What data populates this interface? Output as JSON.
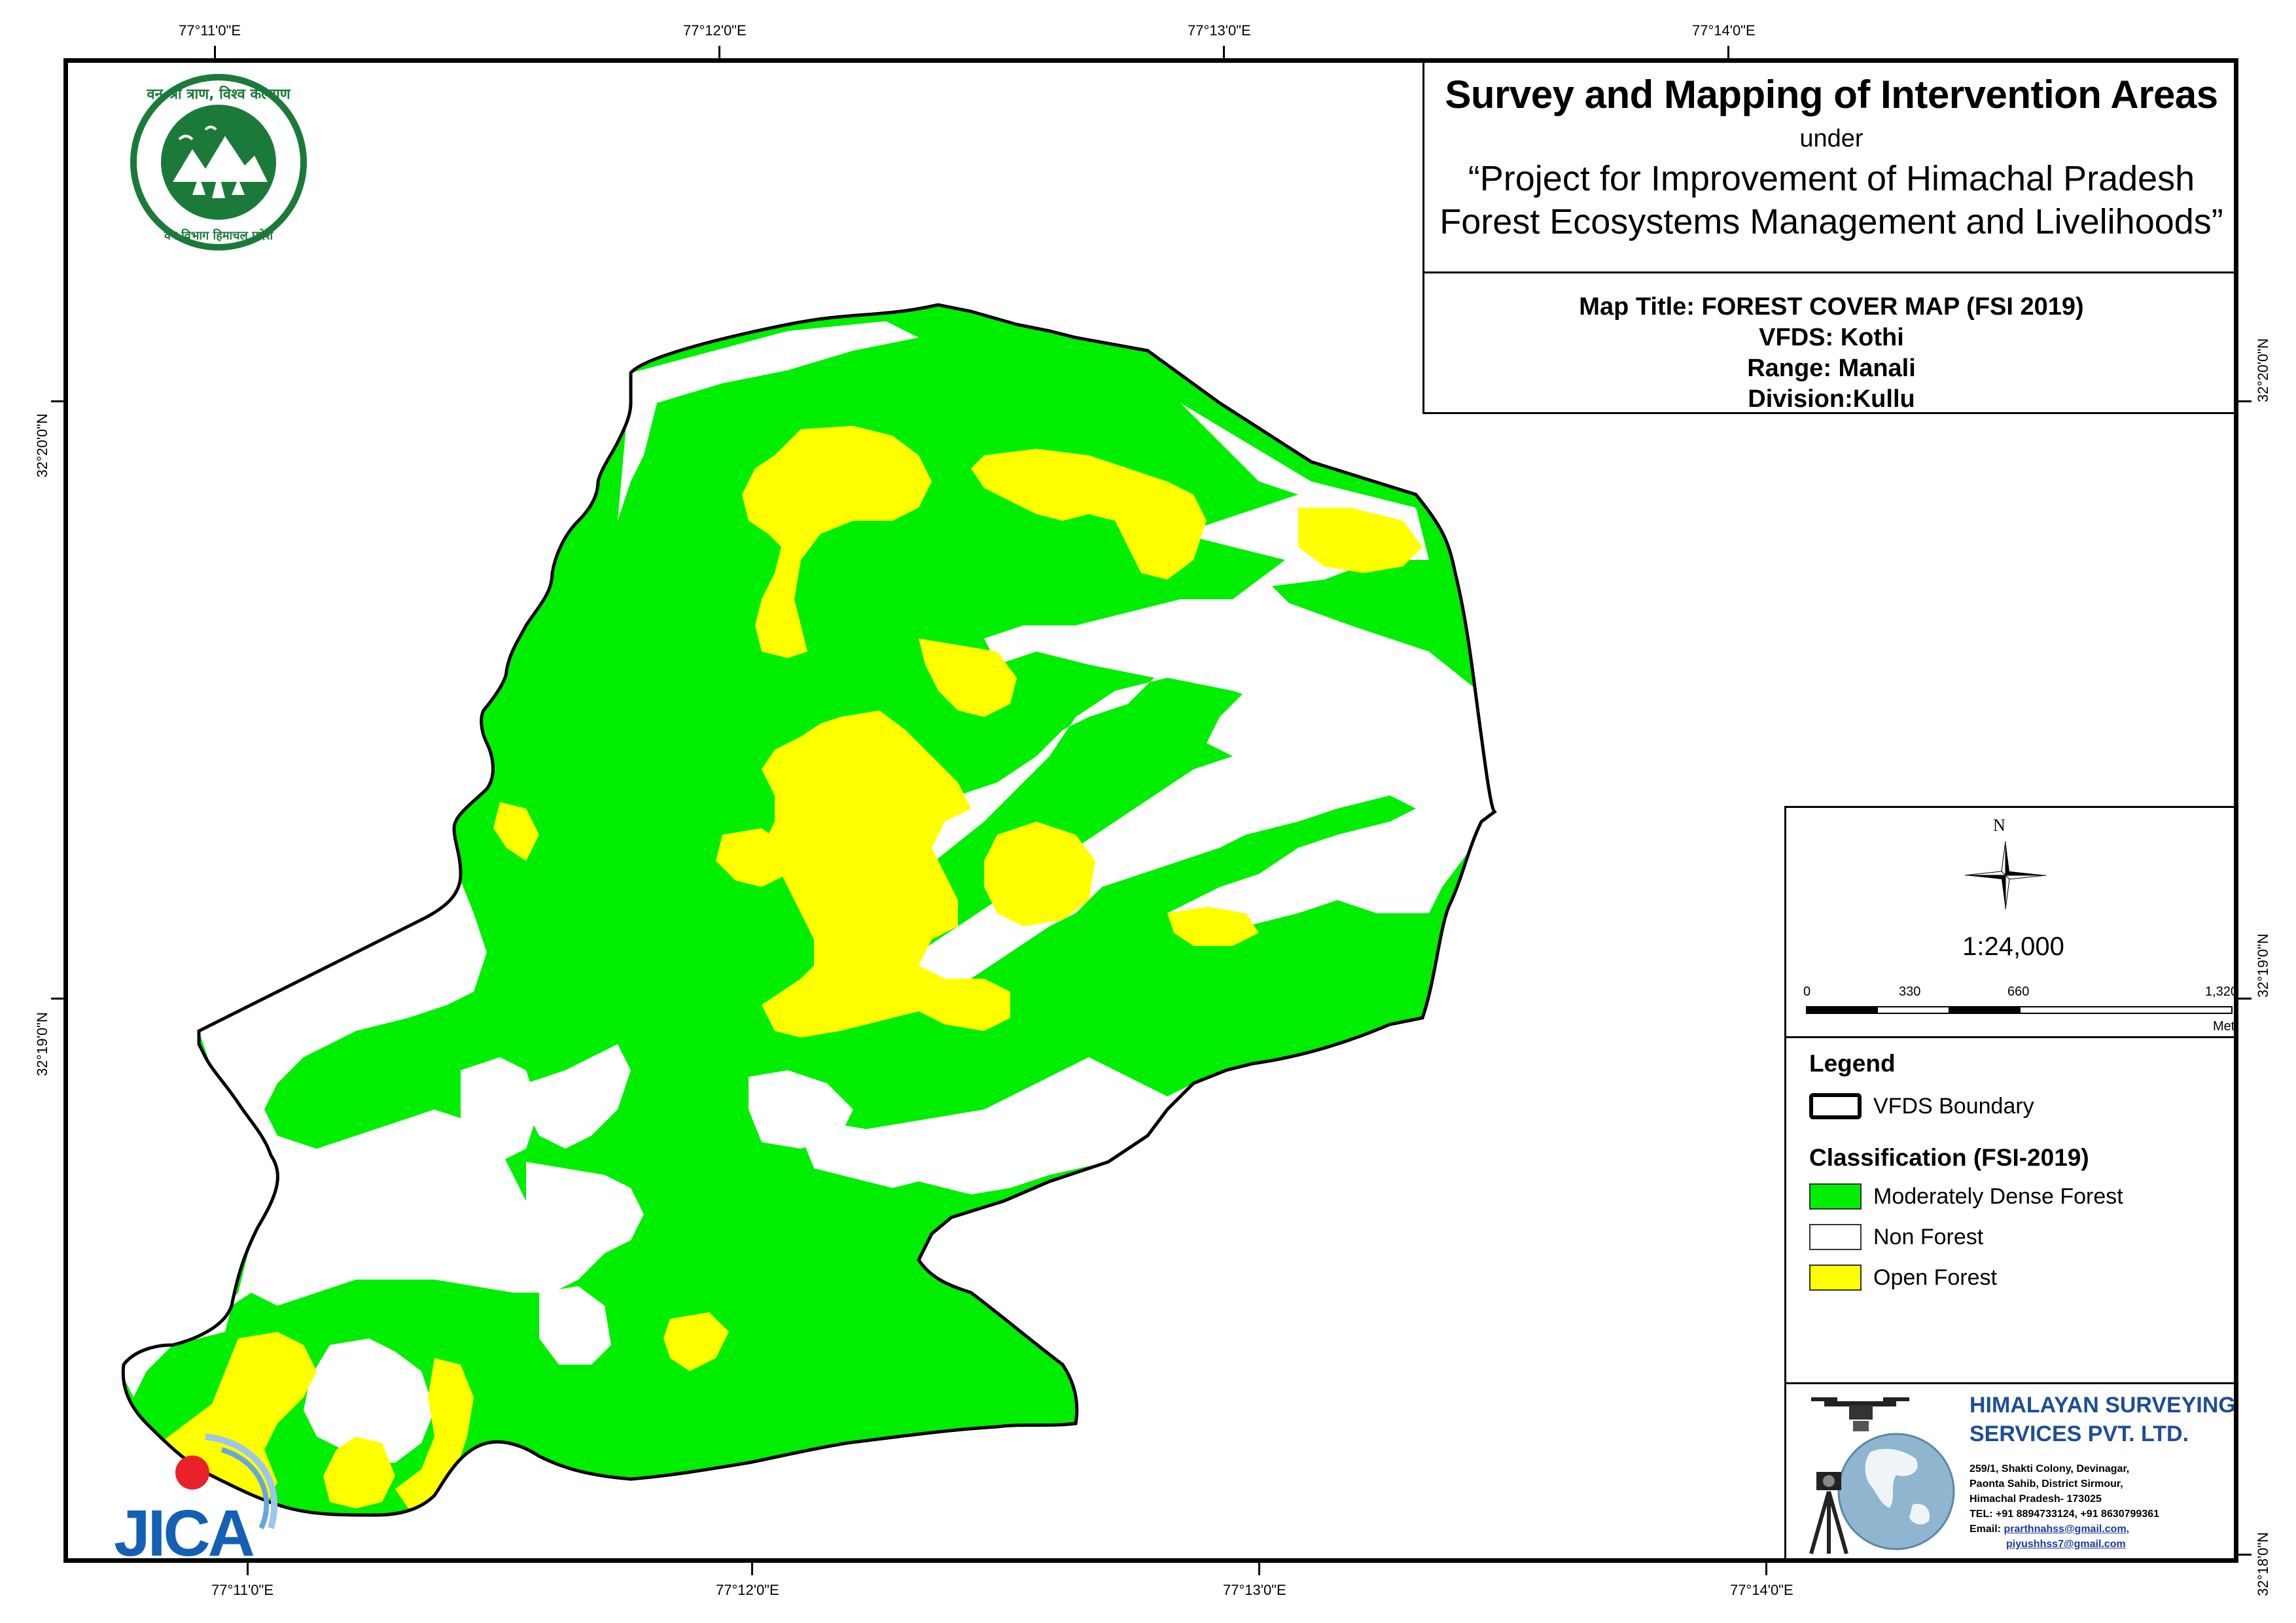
{
  "header": {
    "title": "Survey and Mapping of Intervention Areas",
    "under": "under",
    "project_line1": "“Project for Improvement of Himachal Pradesh",
    "project_line2": "Forest Ecosystems Management and Livelihoods”"
  },
  "map_info": {
    "map_title": "Map Title: FOREST COVER MAP (FSI 2019)",
    "vfds": "VFDS: Kothi",
    "range": "Range: Manali",
    "division": "Division:Kullu"
  },
  "graticule": {
    "top": [
      "77°11'0\"E",
      "77°12'0\"E",
      "77°13'0\"E",
      "77°14'0\"E"
    ],
    "bottom": [
      "77°11'0\"E",
      "77°12'0\"E",
      "77°13'0\"E",
      "77°14'0\"E"
    ],
    "left": [
      "32°20'0\"N",
      "32°19'0\"N"
    ],
    "right": [
      "32°20'0\"N",
      "32°19'0\"N",
      "32°18'0\"N"
    ]
  },
  "north_arrow": {
    "label": "N",
    "icon": "compass-rose-icon"
  },
  "scale": {
    "ratio": "1:24,000",
    "ticks": [
      "0",
      "330",
      "660",
      "1,320"
    ],
    "units": "Meters"
  },
  "legend": {
    "title": "Legend",
    "boundary_label": "VFDS Boundary",
    "classification_title": "Classification (FSI-2019)",
    "classes": [
      {
        "label": "Moderately Dense Forest",
        "color": "#00ee00"
      },
      {
        "label": "Non Forest",
        "color": "#ffffff"
      },
      {
        "label": "Open Forest",
        "color": "#ffff00"
      }
    ]
  },
  "company": {
    "name_line1": "HIMALAYAN SURVEYING",
    "name_line2": "SERVICES PVT. LTD.",
    "address": [
      "259/1, Shakti Colony, Devinagar,",
      "Paonta Sahib, District Sirmour,",
      "Himachal Pradesh- 173025",
      "TEL: +91 8894733124, +91 8630799361"
    ],
    "email_label": "Email:",
    "email1": "prarthnahss@gmail.com,",
    "email2": "piyushhss7@gmail.com"
  },
  "logos": {
    "forest_dept_text_top": "वन श्री त्राण, विश्व कल्याण",
    "forest_dept_text_bottom": "वन विभाग हिमाचल प्रदेश",
    "jica": "JICA"
  },
  "colors": {
    "moderately_dense_forest": "#00ee00",
    "open_forest": "#ffff00",
    "non_forest": "#ffffff",
    "company_blue": "#1f4e96",
    "seal_green": "#1b7a3a",
    "jica_blue": "#1460b5",
    "jica_red": "#e8212b"
  }
}
